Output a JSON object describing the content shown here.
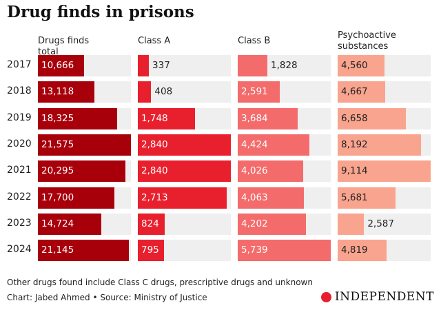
{
  "title": "Drug finds in prisons",
  "chart_data": [
    {
      "type": "bar",
      "orientation": "horizontal",
      "title": "Drugs finds total",
      "color": "#a8000b",
      "categories": [
        "2017",
        "2018",
        "2019",
        "2020",
        "2021",
        "2022",
        "2023",
        "2024"
      ],
      "values": [
        10666,
        13118,
        18325,
        21575,
        20295,
        17700,
        14724,
        21145
      ],
      "value_labels": [
        "10,666",
        "13,118",
        "18,325",
        "21,575",
        "20,295",
        "17,700",
        "14,724",
        "21,145"
      ]
    },
    {
      "type": "bar",
      "orientation": "horizontal",
      "title": "Class A",
      "color": "#e8202e",
      "categories": [
        "2017",
        "2018",
        "2019",
        "2020",
        "2021",
        "2022",
        "2023",
        "2024"
      ],
      "values": [
        337,
        408,
        1748,
        2840,
        2840,
        2713,
        824,
        795
      ],
      "value_labels": [
        "337",
        "408",
        "1,748",
        "2,840",
        "2,840",
        "2,713",
        "824",
        "795"
      ]
    },
    {
      "type": "bar",
      "orientation": "horizontal",
      "title": "Class B",
      "color": "#f46b6b",
      "categories": [
        "2017",
        "2018",
        "2019",
        "2020",
        "2021",
        "2022",
        "2023",
        "2024"
      ],
      "values": [
        1828,
        2591,
        3684,
        4424,
        4026,
        4063,
        4202,
        5739
      ],
      "value_labels": [
        "1,828",
        "2,591",
        "3,684",
        "4,424",
        "4,026",
        "4,063",
        "4,202",
        "5,739"
      ]
    },
    {
      "type": "bar",
      "orientation": "horizontal",
      "title": "Psychoactive substances",
      "color": "#f9a48e",
      "categories": [
        "2017",
        "2018",
        "2019",
        "2020",
        "2021",
        "2022",
        "2023",
        "2024"
      ],
      "values": [
        4560,
        4667,
        6658,
        8192,
        9114,
        5681,
        2587,
        4819
      ],
      "value_labels": [
        "4,560",
        "4,667",
        "6,658",
        "8,192",
        "9,114",
        "5,681",
        "2,587",
        "4,819"
      ]
    }
  ],
  "note": "Other drugs found include Class C drugs, prescriptive drugs and unknown",
  "credit": "Chart: Jabed Ahmed • Source: Ministry of Justice",
  "logo": "INDEPENDENT"
}
